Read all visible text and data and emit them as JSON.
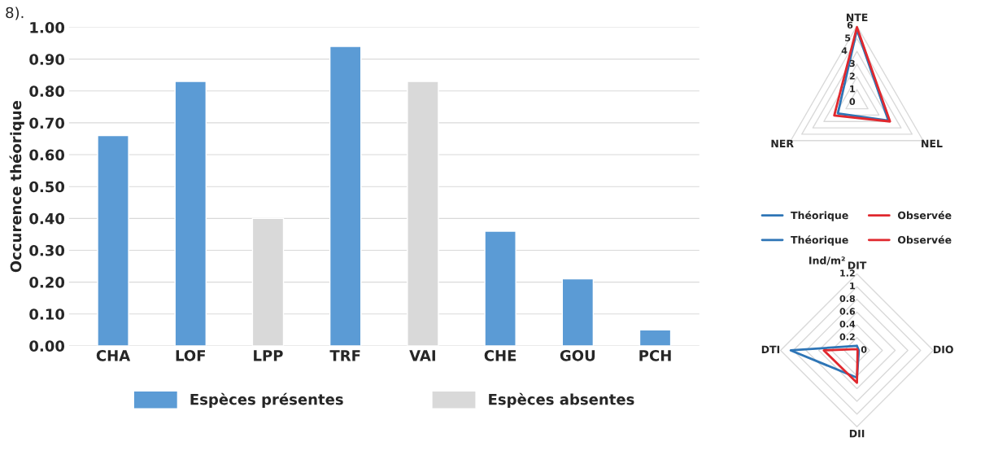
{
  "chart_data": [
    {
      "type": "bar",
      "ylabel": "Occurence théorique",
      "annotations": [
        "8)."
      ],
      "categories": [
        "CHA",
        "LOF",
        "LPP",
        "TRF",
        "VAI",
        "CHE",
        "GOU",
        "PCH"
      ],
      "series": [
        {
          "name": "Espèces présentes",
          "color": "#5b9bd5",
          "values": [
            0.66,
            0.83,
            null,
            0.94,
            null,
            0.36,
            0.21,
            0.05
          ]
        },
        {
          "name": "Espèces absentes",
          "color": "#d9d9d9",
          "values": [
            null,
            null,
            0.4,
            null,
            0.83,
            null,
            null,
            null
          ]
        }
      ],
      "ylim": [
        0,
        1.0
      ],
      "yticks": [
        {
          "value": 0,
          "label": "0.00"
        },
        {
          "value": 0.1,
          "label": "0.10"
        },
        {
          "value": 0.2,
          "label": "0.20"
        },
        {
          "value": 0.3,
          "label": "0.30"
        },
        {
          "value": 0.4,
          "label": "0.40"
        },
        {
          "value": 0.5,
          "label": "0.50"
        },
        {
          "value": 0.6,
          "label": "0.60"
        },
        {
          "value": 0.7,
          "label": "0.70"
        },
        {
          "value": 0.8,
          "label": "0.80"
        },
        {
          "value": 0.9,
          "label": "0.90"
        },
        {
          "value": 1.0,
          "label": "1.00"
        }
      ],
      "grid": "y",
      "legend": "bottom"
    },
    {
      "type": "radar",
      "categories": [
        "NTE",
        "NEL",
        "NER"
      ],
      "series": [
        {
          "name": "Théorique",
          "color": "#2e75b6",
          "values": [
            5.7,
            2.85,
            1.73
          ]
        },
        {
          "name": "Observée",
          "color": "#e0282e",
          "values": [
            5.9,
            3.0,
            2.06
          ]
        }
      ],
      "ylim": [
        0,
        6
      ],
      "yticks": [
        0,
        1,
        2,
        3,
        4,
        5,
        6
      ],
      "grid": true,
      "legend": "bottom"
    },
    {
      "type": "radar",
      "categories": [
        "DIT",
        "DIO",
        "DII",
        "DTI"
      ],
      "annotations": [
        "Ind/m²"
      ],
      "series": [
        {
          "name": "Théorique",
          "color": "#2e75b6",
          "values": [
            0.07,
            0.03,
            0.43,
            1.04
          ]
        },
        {
          "name": "Observée",
          "color": "#e0282e",
          "values": [
            0.02,
            0.01,
            0.51,
            0.52
          ]
        }
      ],
      "ylim": [
        0,
        1.2
      ],
      "yticks": [
        0,
        0.2,
        0.4,
        0.6,
        0.8,
        1,
        1.2
      ],
      "grid": true,
      "legend": "top"
    }
  ]
}
